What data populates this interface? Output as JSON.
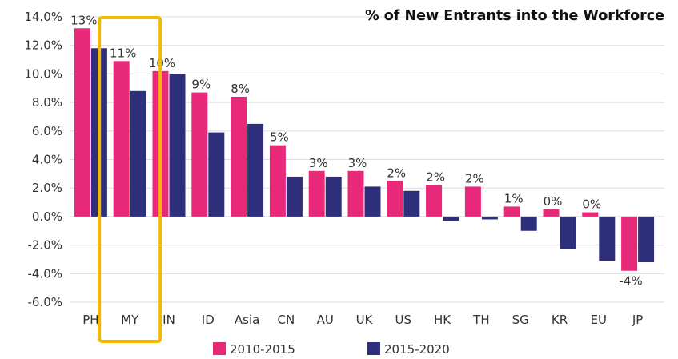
{
  "chart_data": {
    "type": "bar",
    "title": "% of New Entrants into the Workforce",
    "categories": [
      "PH",
      "MY",
      "IN",
      "ID",
      "Asia",
      "CN",
      "AU",
      "UK",
      "US",
      "HK",
      "TH",
      "SG",
      "KR",
      "EU",
      "JP"
    ],
    "series": [
      {
        "name": "2010-2015",
        "color": "#e8297a",
        "values": [
          13.2,
          10.9,
          10.2,
          8.7,
          8.4,
          5.0,
          3.2,
          3.2,
          2.5,
          2.2,
          2.1,
          0.7,
          0.5,
          0.3,
          -3.8
        ],
        "labels": [
          "13%",
          "11%",
          "10%",
          "9%",
          "8%",
          "5%",
          "3%",
          "3%",
          "2%",
          "2%",
          "2%",
          "1%",
          "0%",
          "0%",
          "-4%"
        ]
      },
      {
        "name": "2015-2020",
        "color": "#2e2f7a",
        "values": [
          11.8,
          8.8,
          10.0,
          5.9,
          6.5,
          2.8,
          2.8,
          2.1,
          1.8,
          -0.3,
          -0.2,
          -1.0,
          -2.3,
          -3.1,
          -3.2
        ]
      }
    ],
    "ylim": [
      -6,
      14
    ],
    "yticks": [
      "14.0%",
      "12.0%",
      "10.0%",
      "8.0%",
      "6.0%",
      "4.0%",
      "2.0%",
      "0.0%",
      "-2.0%",
      "-4.0%",
      "-6.0%"
    ],
    "grid": true,
    "legend": "bottom",
    "highlight": {
      "category": "MY",
      "color": "#f5b800"
    }
  }
}
